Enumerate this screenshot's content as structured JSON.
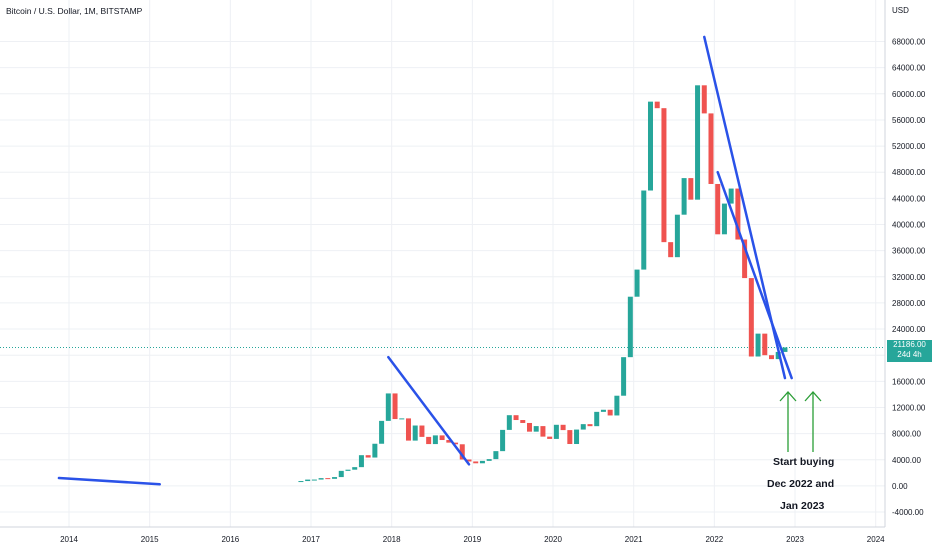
{
  "header": {
    "symbol_title": "Bitcoin / U.S. Dollar, 1M, BITSTAMP",
    "currency": "USD"
  },
  "last_price": {
    "value": "21186.00",
    "countdown": "24d 4h"
  },
  "annotation": {
    "line1": "Start buying",
    "line2": "Dec 2022 and",
    "line3": "Jan 2023"
  },
  "colors": {
    "up": "#26a69a",
    "down": "#ef5350",
    "trendline": "#2a52e8",
    "arrow": "#2a9d36",
    "grid": "#eef0f4",
    "axis_text": "#131722"
  },
  "chart_data": {
    "type": "candlestick",
    "title": "Bitcoin / U.S. Dollar, 1M, BITSTAMP",
    "ylabel": "USD",
    "ylim": [
      -6000,
      72000
    ],
    "x_start": "2013-01",
    "x_end": "2024-04",
    "x_tick_labels": [
      "2014",
      "2015",
      "2016",
      "2017",
      "2018",
      "2019",
      "2020",
      "2021",
      "2022",
      "2023",
      "2024"
    ],
    "y_tick_labels": [
      "68000.00",
      "64000.00",
      "60000.00",
      "56000.00",
      "52000.00",
      "48000.00",
      "44000.00",
      "40000.00",
      "36000.00",
      "32000.00",
      "28000.00",
      "24000.00",
      "20000.00",
      "16000.00",
      "12000.00",
      "8000.00",
      "4000.00",
      "0.00",
      "-4000.00"
    ],
    "candles": [
      {
        "t": "2016-11",
        "o": 700,
        "c": 742
      },
      {
        "t": "2016-12",
        "o": 742,
        "c": 965
      },
      {
        "t": "2017-01",
        "o": 965,
        "c": 970
      },
      {
        "t": "2017-02",
        "o": 970,
        "c": 1190
      },
      {
        "t": "2017-03",
        "o": 1190,
        "c": 1080
      },
      {
        "t": "2017-04",
        "o": 1080,
        "c": 1350
      },
      {
        "t": "2017-05",
        "o": 1350,
        "c": 2300
      },
      {
        "t": "2017-06",
        "o": 2300,
        "c": 2480
      },
      {
        "t": "2017-07",
        "o": 2480,
        "c": 2870
      },
      {
        "t": "2017-08",
        "o": 2870,
        "c": 4700
      },
      {
        "t": "2017-09",
        "o": 4700,
        "c": 4340
      },
      {
        "t": "2017-10",
        "o": 4340,
        "c": 6450
      },
      {
        "t": "2017-11",
        "o": 6450,
        "c": 9950
      },
      {
        "t": "2017-12",
        "o": 9950,
        "c": 14150
      },
      {
        "t": "2018-01",
        "o": 14150,
        "c": 10230
      },
      {
        "t": "2018-02",
        "o": 10230,
        "c": 10330
      },
      {
        "t": "2018-03",
        "o": 10330,
        "c": 6930
      },
      {
        "t": "2018-04",
        "o": 6930,
        "c": 9240
      },
      {
        "t": "2018-05",
        "o": 9240,
        "c": 7500
      },
      {
        "t": "2018-06",
        "o": 7500,
        "c": 6400
      },
      {
        "t": "2018-07",
        "o": 6400,
        "c": 7730
      },
      {
        "t": "2018-08",
        "o": 7730,
        "c": 7020
      },
      {
        "t": "2018-09",
        "o": 7020,
        "c": 6620
      },
      {
        "t": "2018-10",
        "o": 6620,
        "c": 6370
      },
      {
        "t": "2018-11",
        "o": 6370,
        "c": 4040
      },
      {
        "t": "2018-12",
        "o": 4040,
        "c": 3740
      },
      {
        "t": "2019-01",
        "o": 3740,
        "c": 3460
      },
      {
        "t": "2019-02",
        "o": 3460,
        "c": 3830
      },
      {
        "t": "2019-03",
        "o": 3830,
        "c": 4100
      },
      {
        "t": "2019-04",
        "o": 4100,
        "c": 5320
      },
      {
        "t": "2019-05",
        "o": 5320,
        "c": 8570
      },
      {
        "t": "2019-06",
        "o": 8570,
        "c": 10820
      },
      {
        "t": "2019-07",
        "o": 10820,
        "c": 10080
      },
      {
        "t": "2019-08",
        "o": 10080,
        "c": 9630
      },
      {
        "t": "2019-09",
        "o": 9630,
        "c": 8300
      },
      {
        "t": "2019-10",
        "o": 8300,
        "c": 9150
      },
      {
        "t": "2019-11",
        "o": 9150,
        "c": 7540
      },
      {
        "t": "2019-12",
        "o": 7540,
        "c": 7190
      },
      {
        "t": "2020-01",
        "o": 7190,
        "c": 9350
      },
      {
        "t": "2020-02",
        "o": 9350,
        "c": 8540
      },
      {
        "t": "2020-03",
        "o": 8540,
        "c": 6410
      },
      {
        "t": "2020-04",
        "o": 6410,
        "c": 8620
      },
      {
        "t": "2020-05",
        "o": 8620,
        "c": 9450
      },
      {
        "t": "2020-06",
        "o": 9450,
        "c": 9140
      },
      {
        "t": "2020-07",
        "o": 9140,
        "c": 11330
      },
      {
        "t": "2020-08",
        "o": 11330,
        "c": 11650
      },
      {
        "t": "2020-09",
        "o": 11650,
        "c": 10780
      },
      {
        "t": "2020-10",
        "o": 10780,
        "c": 13800
      },
      {
        "t": "2020-11",
        "o": 13800,
        "c": 19700
      },
      {
        "t": "2020-12",
        "o": 19700,
        "c": 28950
      },
      {
        "t": "2021-01",
        "o": 28950,
        "c": 33100
      },
      {
        "t": "2021-02",
        "o": 33100,
        "c": 45200
      },
      {
        "t": "2021-03",
        "o": 45200,
        "c": 58800
      },
      {
        "t": "2021-04",
        "o": 58800,
        "c": 57800
      },
      {
        "t": "2021-05",
        "o": 57800,
        "c": 37300
      },
      {
        "t": "2021-06",
        "o": 37300,
        "c": 35000
      },
      {
        "t": "2021-07",
        "o": 35000,
        "c": 41500
      },
      {
        "t": "2021-08",
        "o": 41500,
        "c": 47100
      },
      {
        "t": "2021-09",
        "o": 47100,
        "c": 43800
      },
      {
        "t": "2021-10",
        "o": 43800,
        "c": 61300
      },
      {
        "t": "2021-11",
        "o": 61300,
        "c": 57000
      },
      {
        "t": "2021-12",
        "o": 57000,
        "c": 46200
      },
      {
        "t": "2022-01",
        "o": 46200,
        "c": 38500
      },
      {
        "t": "2022-02",
        "o": 38500,
        "c": 43200
      },
      {
        "t": "2022-03",
        "o": 43200,
        "c": 45500
      },
      {
        "t": "2022-04",
        "o": 45500,
        "c": 37700
      },
      {
        "t": "2022-05",
        "o": 37700,
        "c": 31800
      },
      {
        "t": "2022-06",
        "o": 31800,
        "c": 19800
      },
      {
        "t": "2022-07",
        "o": 19800,
        "c": 23300
      },
      {
        "t": "2022-08",
        "o": 23300,
        "c": 20000
      },
      {
        "t": "2022-09",
        "o": 20000,
        "c": 19400
      },
      {
        "t": "2022-10",
        "o": 19400,
        "c": 20500
      },
      {
        "t": "2022-11",
        "o": 20500,
        "c": 21186
      }
    ],
    "trendlines": [
      {
        "from": {
          "t": "2013-11",
          "p": 1200
        },
        "to": {
          "t": "2015-02",
          "p": 250
        }
      },
      {
        "from": {
          "t": "2017-12",
          "p": 19700
        },
        "to": {
          "t": "2018-12",
          "p": 3300
        }
      },
      {
        "from": {
          "t": "2021-11",
          "p": 68700
        },
        "to": {
          "t": "2022-11",
          "p": 16500
        }
      },
      {
        "from": {
          "t": "2022-01",
          "p": 48000
        },
        "to": {
          "t": "2022-12",
          "p": 16500
        }
      }
    ]
  }
}
